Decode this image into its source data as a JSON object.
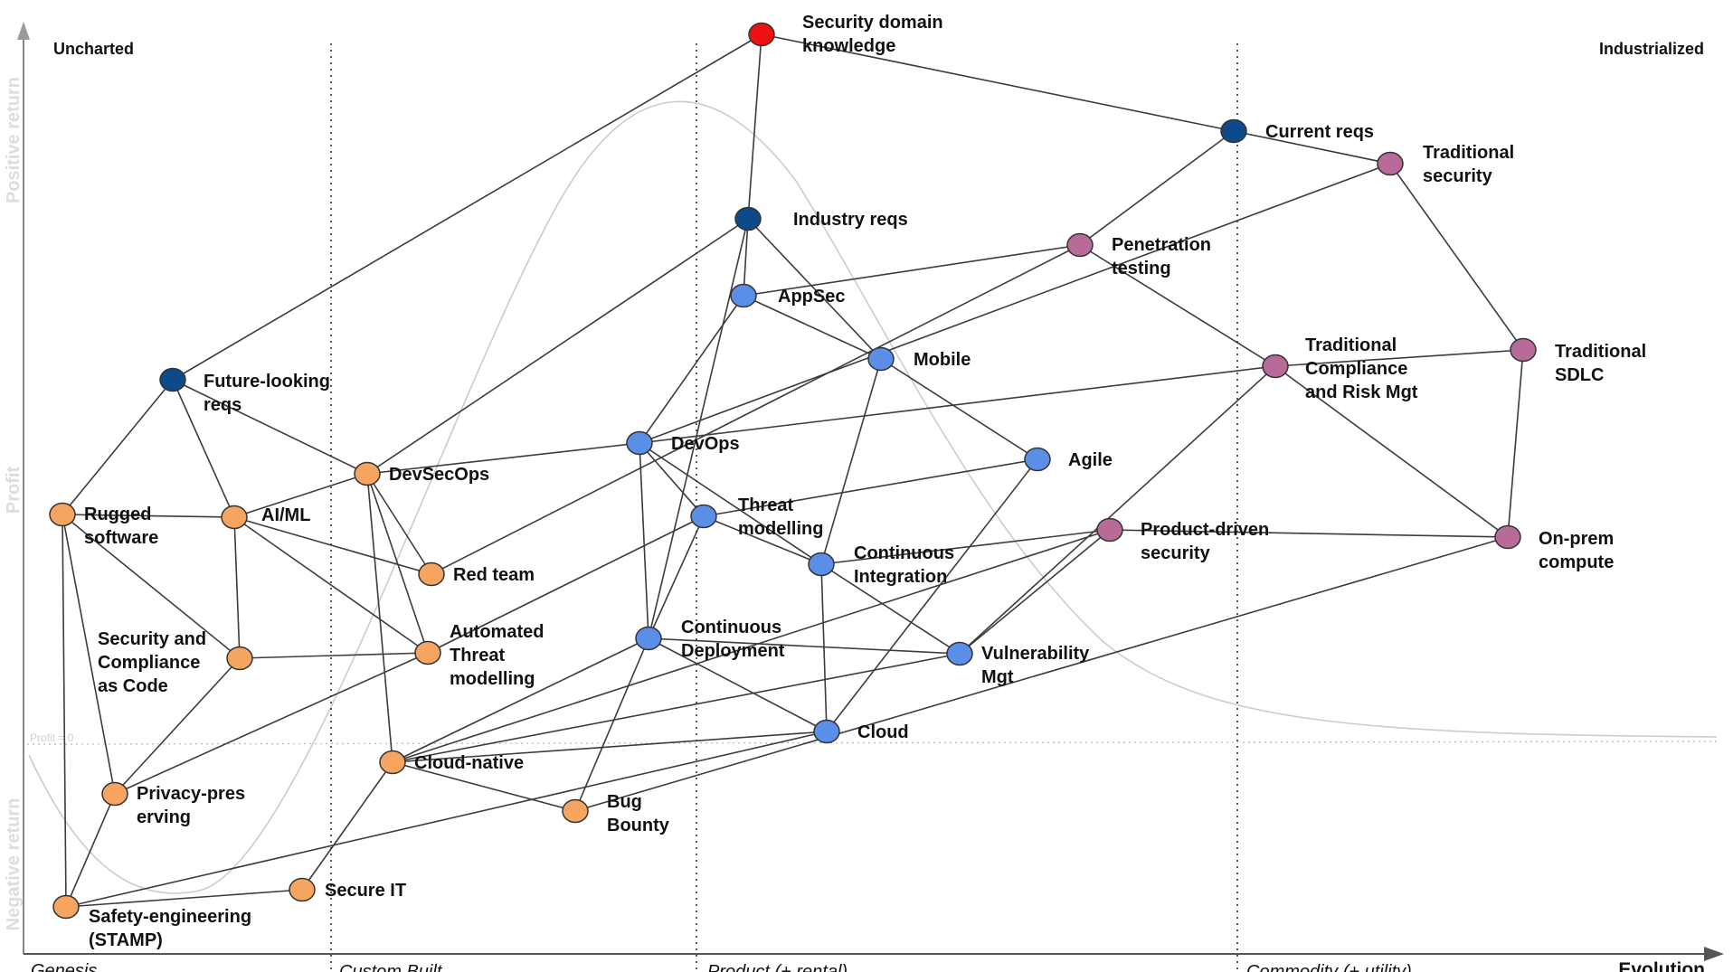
{
  "corners": {
    "left": "Uncharted",
    "right": "Industrialized"
  },
  "y_axis": {
    "positive": "Positive return",
    "middle": "Profit",
    "negative": "Negative return",
    "zero_line": "Profit = 0"
  },
  "x_axis": {
    "stages": [
      "Genesis",
      "Custom Built",
      "Product (+ rental)",
      "Commodity (+ utility)"
    ],
    "end_label": "Evolution"
  },
  "colors": {
    "red": "#ee1111",
    "dark_blue": "#0e4a8a",
    "blue": "#5b8ee6",
    "orange": "#f5a560",
    "purple": "#b86b98"
  },
  "nodes": [
    {
      "id": "security-domain-knowledge",
      "label": [
        "Security domain",
        "knowledge"
      ],
      "color": "red"
    },
    {
      "id": "current-reqs",
      "label": [
        "Current reqs"
      ],
      "color": "dark_blue"
    },
    {
      "id": "traditional-security",
      "label": [
        "Traditional",
        "security"
      ],
      "color": "purple"
    },
    {
      "id": "industry-reqs",
      "label": [
        "Industry reqs"
      ],
      "color": "dark_blue"
    },
    {
      "id": "penetration-testing",
      "label": [
        "Penetration",
        "testing"
      ],
      "color": "purple"
    },
    {
      "id": "appsec",
      "label": [
        "AppSec"
      ],
      "color": "blue"
    },
    {
      "id": "mobile",
      "label": [
        "Mobile"
      ],
      "color": "blue"
    },
    {
      "id": "traditional-sdlc",
      "label": [
        "Traditional",
        "SDLC"
      ],
      "color": "purple"
    },
    {
      "id": "traditional-compliance",
      "label": [
        "Traditional",
        "Compliance",
        "and Risk Mgt"
      ],
      "color": "purple"
    },
    {
      "id": "future-looking-reqs",
      "label": [
        "Future-looking",
        "reqs"
      ],
      "color": "dark_blue"
    },
    {
      "id": "devops",
      "label": [
        "DevOps"
      ],
      "color": "blue"
    },
    {
      "id": "agile",
      "label": [
        "Agile"
      ],
      "color": "blue"
    },
    {
      "id": "devsecops",
      "label": [
        "DevSecOps"
      ],
      "color": "orange"
    },
    {
      "id": "rugged-software",
      "label": [
        "Rugged",
        "software"
      ],
      "color": "orange"
    },
    {
      "id": "ai-ml",
      "label": [
        "AI/ML"
      ],
      "color": "orange"
    },
    {
      "id": "threat-modelling",
      "label": [
        "Threat",
        "modelling"
      ],
      "color": "blue"
    },
    {
      "id": "product-driven-security",
      "label": [
        "Product-driven",
        "security"
      ],
      "color": "purple"
    },
    {
      "id": "on-prem-compute",
      "label": [
        "On-prem",
        "compute"
      ],
      "color": "purple"
    },
    {
      "id": "continuous-integration",
      "label": [
        "Continuous",
        "Integration"
      ],
      "color": "blue"
    },
    {
      "id": "red-team",
      "label": [
        "Red team"
      ],
      "color": "orange"
    },
    {
      "id": "continuous-deployment",
      "label": [
        "Continuous",
        "Deployment"
      ],
      "color": "blue"
    },
    {
      "id": "vulnerability-mgt",
      "label": [
        "Vulnerability",
        "Mgt"
      ],
      "color": "blue"
    },
    {
      "id": "security-compliance-as-code",
      "label": [
        "Security and",
        "Compliance",
        "as Code"
      ],
      "color": "orange"
    },
    {
      "id": "automated-threat-modelling",
      "label": [
        "Automated",
        "Threat",
        "modelling"
      ],
      "color": "orange"
    },
    {
      "id": "cloud",
      "label": [
        "Cloud"
      ],
      "color": "blue"
    },
    {
      "id": "cloud-native",
      "label": [
        "Cloud-native"
      ],
      "color": "orange"
    },
    {
      "id": "privacy-preserving",
      "label": [
        "Privacy-pres",
        "erving"
      ],
      "color": "orange"
    },
    {
      "id": "bug-bounty",
      "label": [
        "Bug",
        "Bounty"
      ],
      "color": "orange"
    },
    {
      "id": "secure-it",
      "label": [
        "Secure IT"
      ],
      "color": "orange"
    },
    {
      "id": "safety-engineering",
      "label": [
        "Safety-engineering",
        "(STAMP)"
      ],
      "color": "orange"
    }
  ],
  "edges": [
    [
      "security-domain-knowledge",
      "future-looking-reqs"
    ],
    [
      "security-domain-knowledge",
      "industry-reqs"
    ],
    [
      "security-domain-knowledge",
      "current-reqs"
    ],
    [
      "current-reqs",
      "traditional-security"
    ],
    [
      "current-reqs",
      "penetration-testing"
    ],
    [
      "traditional-security",
      "traditional-sdlc"
    ],
    [
      "traditional-security",
      "devops"
    ],
    [
      "traditional-sdlc",
      "traditional-compliance"
    ],
    [
      "traditional-sdlc",
      "on-prem-compute"
    ],
    [
      "penetration-testing",
      "traditional-compliance"
    ],
    [
      "penetration-testing",
      "appsec"
    ],
    [
      "penetration-testing",
      "red-team"
    ],
    [
      "traditional-compliance",
      "devops"
    ],
    [
      "traditional-compliance",
      "on-prem-compute"
    ],
    [
      "traditional-compliance",
      "vulnerability-mgt"
    ],
    [
      "industry-reqs",
      "appsec"
    ],
    [
      "industry-reqs",
      "mobile"
    ],
    [
      "industry-reqs",
      "devsecops"
    ],
    [
      "industry-reqs",
      "continuous-deployment"
    ],
    [
      "appsec",
      "mobile"
    ],
    [
      "appsec",
      "devops"
    ],
    [
      "mobile",
      "agile"
    ],
    [
      "mobile",
      "continuous-integration"
    ],
    [
      "agile",
      "threat-modelling"
    ],
    [
      "agile",
      "cloud"
    ],
    [
      "future-looking-reqs",
      "rugged-software"
    ],
    [
      "future-looking-reqs",
      "devsecops"
    ],
    [
      "future-looking-reqs",
      "ai-ml"
    ],
    [
      "devsecops",
      "devops"
    ],
    [
      "devsecops",
      "ai-ml"
    ],
    [
      "devsecops",
      "red-team"
    ],
    [
      "devsecops",
      "automated-threat-modelling"
    ],
    [
      "devsecops",
      "cloud-native"
    ],
    [
      "devops",
      "threat-modelling"
    ],
    [
      "devops",
      "continuous-integration"
    ],
    [
      "devops",
      "continuous-deployment"
    ],
    [
      "threat-modelling",
      "continuous-integration"
    ],
    [
      "threat-modelling",
      "continuous-deployment"
    ],
    [
      "threat-modelling",
      "automated-threat-modelling"
    ],
    [
      "continuous-integration",
      "vulnerability-mgt"
    ],
    [
      "continuous-integration",
      "cloud"
    ],
    [
      "continuous-integration",
      "product-driven-security"
    ],
    [
      "continuous-deployment",
      "vulnerability-mgt"
    ],
    [
      "continuous-deployment",
      "cloud"
    ],
    [
      "continuous-deployment",
      "cloud-native"
    ],
    [
      "continuous-deployment",
      "bug-bounty"
    ],
    [
      "product-driven-security",
      "on-prem-compute"
    ],
    [
      "product-driven-security",
      "vulnerability-mgt"
    ],
    [
      "product-driven-security",
      "cloud-native"
    ],
    [
      "on-prem-compute",
      "bug-bounty"
    ],
    [
      "vulnerability-mgt",
      "cloud-native"
    ],
    [
      "cloud",
      "cloud-native"
    ],
    [
      "cloud",
      "safety-engineering"
    ],
    [
      "rugged-software",
      "ai-ml"
    ],
    [
      "rugged-software",
      "security-compliance-as-code"
    ],
    [
      "rugged-software",
      "privacy-preserving"
    ],
    [
      "rugged-software",
      "safety-engineering"
    ],
    [
      "ai-ml",
      "red-team"
    ],
    [
      "ai-ml",
      "security-compliance-as-code"
    ],
    [
      "ai-ml",
      "automated-threat-modelling"
    ],
    [
      "security-compliance-as-code",
      "automated-threat-modelling"
    ],
    [
      "security-compliance-as-code",
      "privacy-preserving"
    ],
    [
      "automated-threat-modelling",
      "privacy-preserving"
    ],
    [
      "cloud-native",
      "bug-bounty"
    ],
    [
      "cloud-native",
      "secure-it"
    ],
    [
      "privacy-preserving",
      "safety-engineering"
    ],
    [
      "secure-it",
      "safety-engineering"
    ]
  ]
}
